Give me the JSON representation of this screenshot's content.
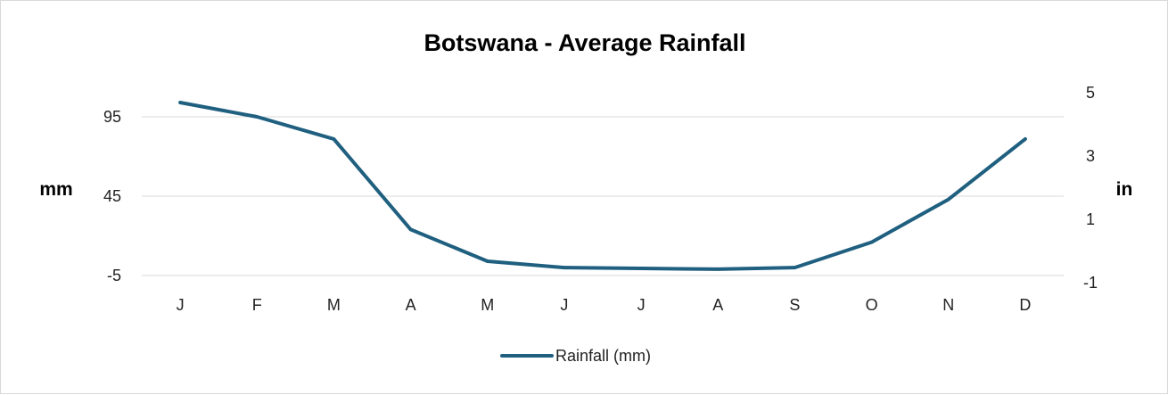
{
  "chart_data": {
    "type": "line",
    "title": "Botswana - Average Rainfall",
    "categories": [
      "J",
      "F",
      "M",
      "A",
      "M",
      "J",
      "J",
      "A",
      "S",
      "O",
      "N",
      "D"
    ],
    "series": [
      {
        "name": "Rainfall (mm)",
        "color": "#1f5f7f",
        "values": [
          104,
          95,
          81,
          24,
          4,
          0,
          -0.5,
          -1,
          0,
          16,
          43,
          81
        ]
      }
    ],
    "ylabel": "mm",
    "y2label": "in",
    "ylim": [
      -5,
      95
    ],
    "yticks": [
      "95",
      "45",
      "-5"
    ],
    "y2lim": [
      -1,
      5
    ],
    "y2ticks": [
      "5",
      "3",
      "1",
      "-1"
    ],
    "grid": true,
    "legend": "bottom"
  }
}
